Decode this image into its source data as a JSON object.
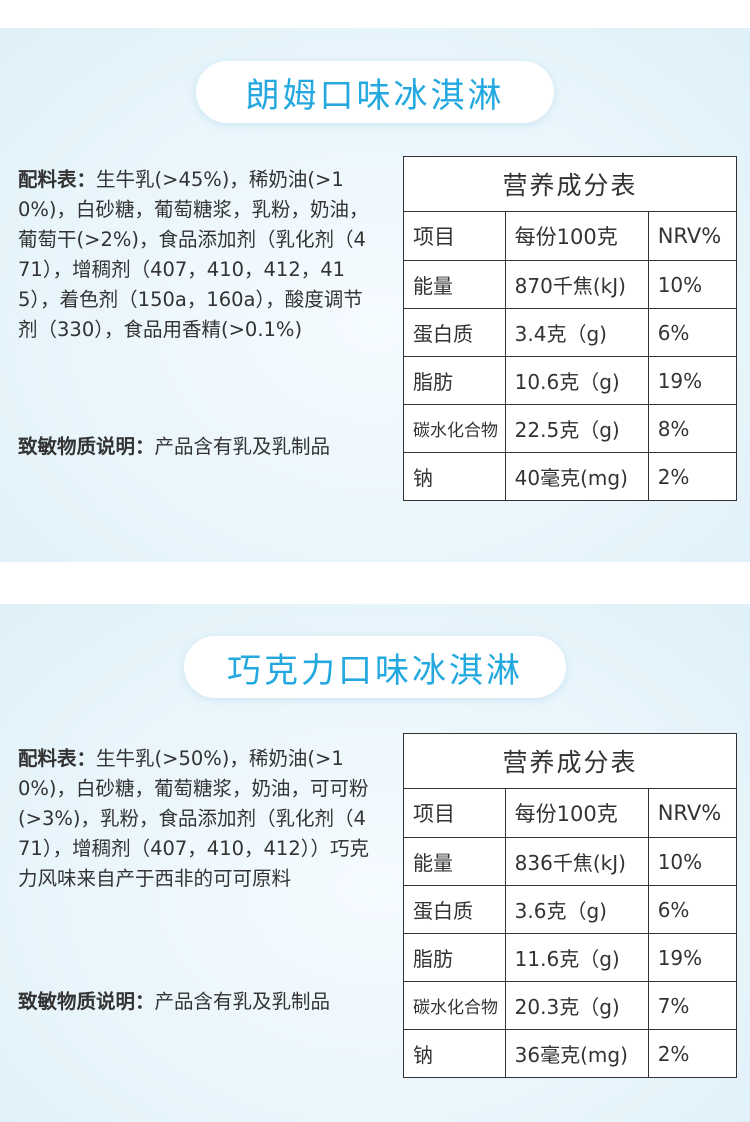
{
  "products": [
    {
      "title": "朗姆口味冰淇淋",
      "ingredients_label": "配料表：",
      "ingredients_text": "生牛乳(>45%)，稀奶油(>10%)，白砂糖，葡萄糖浆，乳粉，奶油，葡萄干(>2%)，食品添加剂（乳化剂（471），增稠剂（407，410，412，415），着色剂（150a，160a），酸度调节剂（330），食品用香精(>0.1%)",
      "allergen_label": "致敏物质说明：",
      "allergen_text": "产品含有乳及乳制品",
      "table": {
        "caption": "营养成分表",
        "headers": [
          "项目",
          "每份100克",
          "NRV%"
        ],
        "rows": [
          [
            "能量",
            "870千焦(kJ)",
            "10%"
          ],
          [
            "蛋白质",
            "3.4克（g)",
            "6%"
          ],
          [
            "脂肪",
            "10.6克（g)",
            "19%"
          ],
          [
            "碳水化合物",
            "22.5克（g)",
            "8%"
          ],
          [
            "钠",
            "40毫克(mg)",
            "2%"
          ]
        ]
      }
    },
    {
      "title": "巧克力口味冰淇淋",
      "ingredients_label": "配料表：",
      "ingredients_text": "生牛乳(>50%)，稀奶油(>10%)，白砂糖，葡萄糖浆，奶油，可可粉(>3%)，乳粉，食品添加剂（乳化剂（471），增稠剂（407，410，412））巧克力风味来自产于西非的可可原料",
      "allergen_label": "致敏物质说明：",
      "allergen_text": "产品含有乳及乳制品",
      "table": {
        "caption": "营养成分表",
        "headers": [
          "项目",
          "每份100克",
          "NRV%"
        ],
        "rows": [
          [
            "能量",
            "836千焦(kJ)",
            "10%"
          ],
          [
            "蛋白质",
            "3.6克（g)",
            "6%"
          ],
          [
            "脂肪",
            "11.6克（g)",
            "19%"
          ],
          [
            "碳水化合物",
            "20.3克（g)",
            "7%"
          ],
          [
            "钠",
            "36毫克(mg)",
            "2%"
          ]
        ]
      }
    }
  ],
  "colors": {
    "accent": "#23a8e0",
    "text": "#333333",
    "background": "#eaf6fc"
  }
}
